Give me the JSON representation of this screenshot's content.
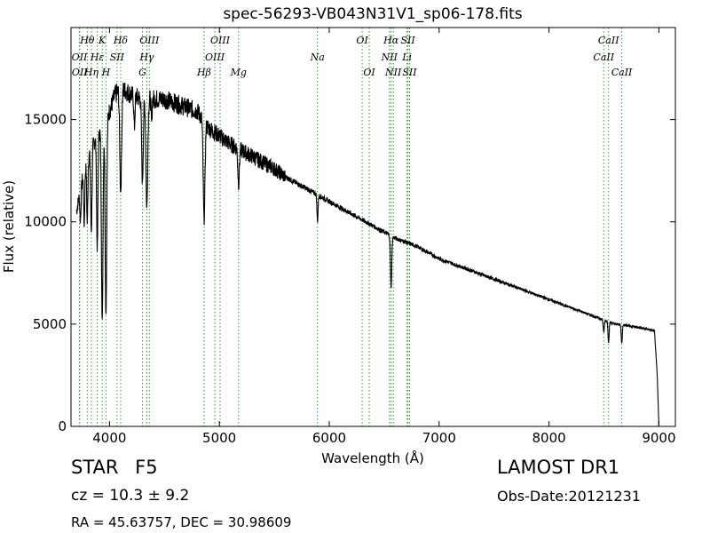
{
  "chart_data": {
    "type": "line",
    "title": "spec-56293-VB043N31V1_sp06-178.fits",
    "xlabel": "Wavelength (Å)",
    "ylabel": "Flux (relative)",
    "xlim": [
      3650,
      9150
    ],
    "ylim": [
      0,
      19500
    ],
    "xticks": [
      4000,
      5000,
      6000,
      7000,
      8000,
      9000
    ],
    "yticks": [
      0,
      5000,
      10000,
      15000
    ],
    "xtick_labels": [
      "4000",
      "5000",
      "6000",
      "7000",
      "8000",
      "9000"
    ],
    "ytick_labels": [
      "0",
      "5000",
      "10000",
      "15000"
    ],
    "grid": false,
    "line_color": "#000000",
    "marker_color": "#2ca02c",
    "continuum": [
      [
        3700,
        10500
      ],
      [
        3750,
        12000
      ],
      [
        3800,
        13000
      ],
      [
        3850,
        13800
      ],
      [
        3900,
        14300
      ],
      [
        3950,
        14800
      ],
      [
        4000,
        15400
      ],
      [
        4050,
        16200
      ],
      [
        4100,
        16500
      ],
      [
        4150,
        16400
      ],
      [
        4200,
        16200
      ],
      [
        4300,
        16000
      ],
      [
        4400,
        16000
      ],
      [
        4500,
        16000
      ],
      [
        4600,
        15800
      ],
      [
        4700,
        15600
      ],
      [
        4800,
        15400
      ],
      [
        4900,
        14600
      ],
      [
        5000,
        14200
      ],
      [
        5100,
        13800
      ],
      [
        5200,
        13500
      ],
      [
        5300,
        13200
      ],
      [
        5400,
        12900
      ],
      [
        5500,
        12600
      ],
      [
        5600,
        12200
      ],
      [
        5700,
        11900
      ],
      [
        5800,
        11600
      ],
      [
        5900,
        11300
      ],
      [
        6000,
        11000
      ],
      [
        6100,
        10700
      ],
      [
        6200,
        10400
      ],
      [
        6300,
        10100
      ],
      [
        6400,
        9800
      ],
      [
        6500,
        9500
      ],
      [
        6600,
        9200
      ],
      [
        6700,
        9000
      ],
      [
        6800,
        8800
      ],
      [
        6900,
        8500
      ],
      [
        7000,
        8200
      ],
      [
        7100,
        8000
      ],
      [
        7200,
        7800
      ],
      [
        7300,
        7600
      ],
      [
        7400,
        7400
      ],
      [
        7500,
        7200
      ],
      [
        7600,
        7000
      ],
      [
        7700,
        6800
      ],
      [
        7800,
        6600
      ],
      [
        7900,
        6400
      ],
      [
        8000,
        6200
      ],
      [
        8100,
        6000
      ],
      [
        8200,
        5800
      ],
      [
        8300,
        5600
      ],
      [
        8400,
        5400
      ],
      [
        8500,
        5200
      ],
      [
        8600,
        5000
      ],
      [
        8700,
        4950
      ],
      [
        8800,
        4850
      ],
      [
        8900,
        4750
      ],
      [
        8960,
        4650
      ],
      [
        8985,
        2500
      ],
      [
        9000,
        0
      ]
    ],
    "absorption": [
      {
        "wave": 3736,
        "depth": 1500,
        "width": 5
      },
      {
        "wave": 3770,
        "depth": 2500,
        "width": 5
      },
      {
        "wave": 3798,
        "depth": 3000,
        "width": 5
      },
      {
        "wave": 3835,
        "depth": 4000,
        "width": 6
      },
      {
        "wave": 3889,
        "depth": 5500,
        "width": 6
      },
      {
        "wave": 3934,
        "depth": 9500,
        "width": 7
      },
      {
        "wave": 3968,
        "depth": 9500,
        "width": 7
      },
      {
        "wave": 4102,
        "depth": 5000,
        "width": 8
      },
      {
        "wave": 4227,
        "depth": 1500,
        "width": 5
      },
      {
        "wave": 4300,
        "depth": 4000,
        "width": 7
      },
      {
        "wave": 4340,
        "depth": 5300,
        "width": 8
      },
      {
        "wave": 4383,
        "depth": 1200,
        "width": 4
      },
      {
        "wave": 4861,
        "depth": 4800,
        "width": 8
      },
      {
        "wave": 5175,
        "depth": 1700,
        "width": 7
      },
      {
        "wave": 5893,
        "depth": 1300,
        "width": 5
      },
      {
        "wave": 6563,
        "depth": 2500,
        "width": 6
      },
      {
        "wave": 8498,
        "depth": 600,
        "width": 5
      },
      {
        "wave": 8542,
        "depth": 1000,
        "width": 5
      },
      {
        "wave": 8662,
        "depth": 900,
        "width": 5
      }
    ],
    "noise": 300,
    "lines": [
      {
        "label": "OII",
        "wave": 3727,
        "row": 1
      },
      {
        "label": "OII",
        "wave": 3729,
        "row": 2
      },
      {
        "label": "Hθ",
        "wave": 3798,
        "row": 0
      },
      {
        "label": "Hη",
        "wave": 3835,
        "row": 2
      },
      {
        "label": "Hε",
        "wave": 3889,
        "row": 1
      },
      {
        "label": "K",
        "wave": 3934,
        "row": 0
      },
      {
        "label": "H",
        "wave": 3968,
        "row": 2
      },
      {
        "label": "SII",
        "wave": 4069,
        "row": 1
      },
      {
        "label": "Hδ",
        "wave": 4102,
        "row": 0
      },
      {
        "label": "G",
        "wave": 4300,
        "row": 2
      },
      {
        "label": "Hγ",
        "wave": 4340,
        "row": 1
      },
      {
        "label": "OIII",
        "wave": 4363,
        "row": 0
      },
      {
        "label": "Hβ",
        "wave": 4861,
        "row": 2
      },
      {
        "label": "OIII",
        "wave": 4959,
        "row": 1
      },
      {
        "label": "OIII",
        "wave": 5007,
        "row": 0
      },
      {
        "label": "Mg",
        "wave": 5175,
        "row": 2
      },
      {
        "label": "Na",
        "wave": 5893,
        "row": 1
      },
      {
        "label": "OI",
        "wave": 6300,
        "row": 0
      },
      {
        "label": "OI",
        "wave": 6364,
        "row": 2
      },
      {
        "label": "NII",
        "wave": 6548,
        "row": 1
      },
      {
        "label": "Hα",
        "wave": 6563,
        "row": 0
      },
      {
        "label": "NII",
        "wave": 6583,
        "row": 2
      },
      {
        "label": "Li",
        "wave": 6708,
        "row": 1
      },
      {
        "label": "SII",
        "wave": 6716,
        "row": 0
      },
      {
        "label": "SII",
        "wave": 6731,
        "row": 2
      },
      {
        "label": "CaII",
        "wave": 8498,
        "row": 1
      },
      {
        "label": "CaII",
        "wave": 8542,
        "row": 0
      },
      {
        "label": "CaII",
        "wave": 8662,
        "row": 2
      }
    ]
  },
  "info": {
    "object_type": "STAR",
    "subclass": "F5",
    "cz": "cz = 10.3  ± 9.2",
    "radec": "RA = 45.63757, DEC = 30.98609",
    "survey": "LAMOST DR1",
    "obs_date": "Obs-Date:20121231"
  }
}
